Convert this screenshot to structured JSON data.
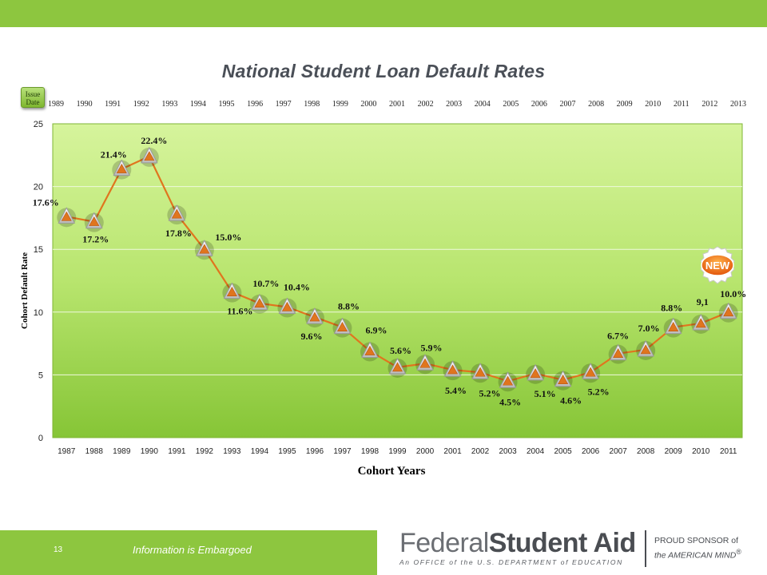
{
  "title": "National Student Loan Default Rates",
  "issue_badge": {
    "line1": "Issue",
    "line2": "Date"
  },
  "new_badge": "NEW",
  "footer": {
    "page_number": "13",
    "embargo_text": "Information is Embargoed",
    "logo_word_light": "Federal",
    "logo_word_bold": "Student Aid",
    "logo_subtitle": "An OFFICE of the U.S. DEPARTMENT of EDUCATION",
    "sponsor_line1": "PROUD SPONSOR of",
    "sponsor_line2": "the AMERICAN MIND",
    "sponsor_mark": "®"
  },
  "colors": {
    "top_bar": "#8dc63f",
    "plot_fill": "#b4e36a",
    "line": "#e0751e",
    "marker": "#e0751e"
  },
  "chart_data": {
    "type": "line",
    "title": "National Student Loan Default Rates",
    "xlabel": "Cohort Years",
    "ylabel": "Cohort Default Rate",
    "secondary_x_label": "Issue Date",
    "ylim": [
      0,
      25
    ],
    "yticks": [
      0,
      5,
      10,
      15,
      20,
      25
    ],
    "grid": true,
    "categories": [
      "1987",
      "1988",
      "1989",
      "1990",
      "1991",
      "1992",
      "1993",
      "1994",
      "1995",
      "1996",
      "1997",
      "1998",
      "1999",
      "2000",
      "2001",
      "2002",
      "2003",
      "2004",
      "2005",
      "2006",
      "2007",
      "2008",
      "2009",
      "2010",
      "2011"
    ],
    "issue_dates": [
      "1989",
      "1990",
      "1991",
      "1992",
      "1993",
      "1994",
      "1995",
      "1996",
      "1997",
      "1998",
      "1999",
      "2000",
      "2001",
      "2002",
      "2003",
      "2004",
      "2005",
      "2006",
      "2007",
      "2008",
      "2009",
      "2010",
      "2011",
      "2012",
      "2013"
    ],
    "values": [
      17.6,
      17.2,
      21.4,
      22.4,
      17.8,
      15.0,
      11.6,
      10.7,
      10.4,
      9.6,
      8.8,
      6.9,
      5.6,
      5.9,
      5.4,
      5.2,
      4.5,
      5.1,
      4.6,
      5.2,
      6.7,
      7.0,
      8.8,
      9.1,
      10.0
    ],
    "data_labels": [
      "17.6%",
      "17.2%",
      "21.4%",
      "22.4%",
      "17.8%",
      "15.0%",
      "11.6%",
      "10.7%",
      "10.4%",
      "9.6%",
      "8.8%",
      "6.9%",
      "5.6%",
      "5.9%",
      "5.4%",
      "5.2%",
      "4.5%",
      "5.1%",
      "4.6%",
      "5.2%",
      "6.7%",
      "7.0%",
      "8.8%",
      "9,1",
      "10.0%"
    ]
  }
}
